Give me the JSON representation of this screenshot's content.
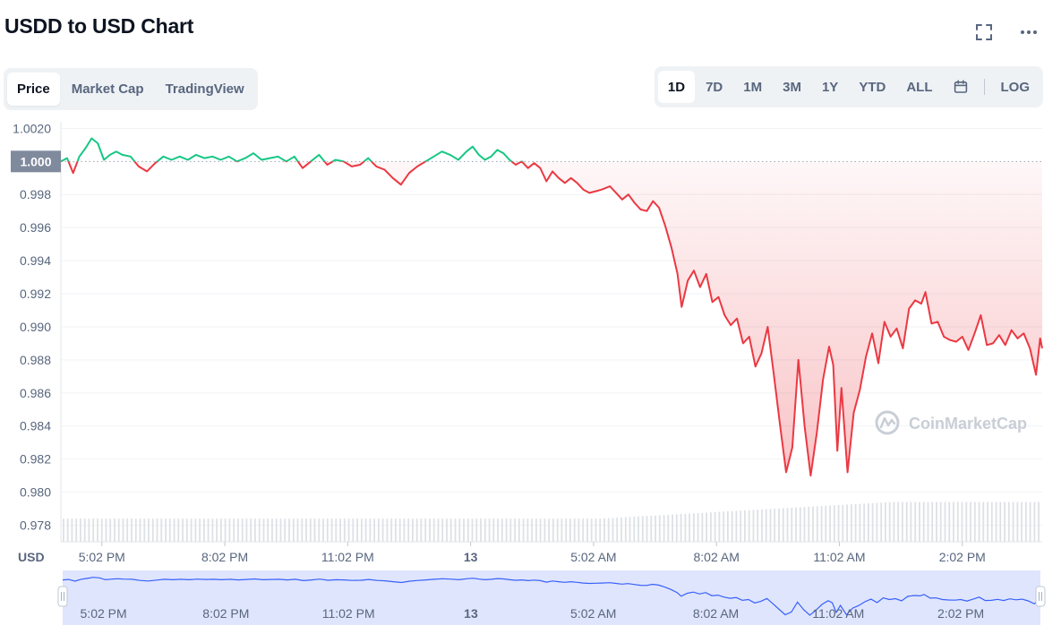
{
  "header": {
    "title": "USDD to USD Chart"
  },
  "tabs": [
    {
      "label": "Price",
      "active": true
    },
    {
      "label": "Market Cap",
      "active": false
    },
    {
      "label": "TradingView",
      "active": false
    }
  ],
  "ranges": [
    {
      "label": "1D",
      "active": true
    },
    {
      "label": "7D",
      "active": false
    },
    {
      "label": "1M",
      "active": false
    },
    {
      "label": "3M",
      "active": false
    },
    {
      "label": "1Y",
      "active": false
    },
    {
      "label": "YTD",
      "active": false
    },
    {
      "label": "ALL",
      "active": false
    }
  ],
  "log_label": "LOG",
  "icons": {
    "expand": "expand-icon",
    "more": "more-icon",
    "calendar": "calendar-icon"
  },
  "watermark": "CoinMarketCap",
  "colors": {
    "up": "#16c784",
    "down": "#ea3943",
    "brush": "#3861fb",
    "current_bg": "#808a9d"
  },
  "chart_data": {
    "type": "line",
    "ylabel": "USD",
    "current_value_label": "1.000",
    "current_value": 1.0,
    "ylim": [
      0.977,
      1.0024
    ],
    "y_ticks": [
      {
        "value": 1.002,
        "label": "1.0020"
      },
      {
        "value": 0.998,
        "label": "0.998"
      },
      {
        "value": 0.996,
        "label": "0.996"
      },
      {
        "value": 0.994,
        "label": "0.994"
      },
      {
        "value": 0.992,
        "label": "0.992"
      },
      {
        "value": 0.99,
        "label": "0.990"
      },
      {
        "value": 0.988,
        "label": "0.988"
      },
      {
        "value": 0.986,
        "label": "0.986"
      },
      {
        "value": 0.984,
        "label": "0.984"
      },
      {
        "value": 0.982,
        "label": "0.982"
      },
      {
        "value": 0.98,
        "label": "0.980"
      },
      {
        "value": 0.978,
        "label": "0.978"
      }
    ],
    "x_ticks": [
      {
        "t": 1.0,
        "label": "5:02 PM",
        "bold": false
      },
      {
        "t": 4.0,
        "label": "8:02 PM",
        "bold": false
      },
      {
        "t": 7.0,
        "label": "11:02 PM",
        "bold": false
      },
      {
        "t": 10.0,
        "label": "13",
        "bold": true
      },
      {
        "t": 13.0,
        "label": "5:02 AM",
        "bold": false
      },
      {
        "t": 16.0,
        "label": "8:02 AM",
        "bold": false
      },
      {
        "t": 19.0,
        "label": "11:02 AM",
        "bold": false
      },
      {
        "t": 22.0,
        "label": "2:02 PM",
        "bold": false
      }
    ],
    "x_range": [
      0.0,
      23.95
    ],
    "series": [
      {
        "points": [
          [
            0.0,
            1.0
          ],
          [
            0.15,
            1.0002
          ],
          [
            0.3,
            0.9993
          ],
          [
            0.45,
            1.0003
          ],
          [
            0.6,
            1.0008
          ],
          [
            0.75,
            1.0014
          ],
          [
            0.9,
            1.0011
          ],
          [
            1.05,
            1.0001
          ],
          [
            1.2,
            1.0004
          ],
          [
            1.35,
            1.0006
          ],
          [
            1.5,
            1.0004
          ],
          [
            1.7,
            1.0003
          ],
          [
            1.9,
            0.9997
          ],
          [
            2.1,
            0.9994
          ],
          [
            2.3,
            0.9999
          ],
          [
            2.5,
            1.0003
          ],
          [
            2.7,
            1.0001
          ],
          [
            2.9,
            1.0003
          ],
          [
            3.1,
            1.0001
          ],
          [
            3.3,
            1.0004
          ],
          [
            3.5,
            1.0002
          ],
          [
            3.7,
            1.0003
          ],
          [
            3.9,
            1.0001
          ],
          [
            4.1,
            1.0003
          ],
          [
            4.3,
            1.0
          ],
          [
            4.5,
            1.0002
          ],
          [
            4.7,
            1.0005
          ],
          [
            4.9,
            1.0001
          ],
          [
            5.1,
            1.0002
          ],
          [
            5.3,
            1.0003
          ],
          [
            5.5,
            1.0
          ],
          [
            5.7,
            1.0003
          ],
          [
            5.9,
            0.9996
          ],
          [
            6.1,
            1.0
          ],
          [
            6.3,
            1.0004
          ],
          [
            6.5,
            0.9998
          ],
          [
            6.7,
            1.0001
          ],
          [
            6.9,
            1.0
          ],
          [
            7.1,
            0.9997
          ],
          [
            7.3,
            0.9998
          ],
          [
            7.5,
            1.0002
          ],
          [
            7.7,
            0.9997
          ],
          [
            7.9,
            0.9995
          ],
          [
            8.1,
            0.999
          ],
          [
            8.3,
            0.9986
          ],
          [
            8.5,
            0.9993
          ],
          [
            8.7,
            0.9997
          ],
          [
            8.9,
            1.0
          ],
          [
            9.1,
            1.0003
          ],
          [
            9.3,
            1.0006
          ],
          [
            9.5,
            1.0004
          ],
          [
            9.7,
            1.0001
          ],
          [
            9.9,
            1.0006
          ],
          [
            10.05,
            1.0009
          ],
          [
            10.2,
            1.0004
          ],
          [
            10.35,
            1.0001
          ],
          [
            10.5,
            1.0003
          ],
          [
            10.65,
            1.0007
          ],
          [
            10.8,
            1.0005
          ],
          [
            10.95,
            1.0001
          ],
          [
            11.1,
            0.9998
          ],
          [
            11.25,
            1.0
          ],
          [
            11.4,
            0.9996
          ],
          [
            11.55,
            0.9999
          ],
          [
            11.7,
            0.9996
          ],
          [
            11.85,
            0.9988
          ],
          [
            12.0,
            0.9994
          ],
          [
            12.15,
            0.999
          ],
          [
            12.3,
            0.9987
          ],
          [
            12.45,
            0.999
          ],
          [
            12.6,
            0.9987
          ],
          [
            12.75,
            0.9983
          ],
          [
            12.9,
            0.9981
          ],
          [
            13.05,
            0.9982
          ],
          [
            13.2,
            0.9983
          ],
          [
            13.4,
            0.9985
          ],
          [
            13.55,
            0.9981
          ],
          [
            13.7,
            0.9977
          ],
          [
            13.85,
            0.998
          ],
          [
            14.0,
            0.9975
          ],
          [
            14.15,
            0.9971
          ],
          [
            14.3,
            0.997
          ],
          [
            14.45,
            0.9976
          ],
          [
            14.6,
            0.9972
          ],
          [
            14.75,
            0.9961
          ],
          [
            14.9,
            0.9948
          ],
          [
            15.05,
            0.9932
          ],
          [
            15.15,
            0.9912
          ],
          [
            15.3,
            0.9928
          ],
          [
            15.45,
            0.9934
          ],
          [
            15.6,
            0.9924
          ],
          [
            15.75,
            0.9932
          ],
          [
            15.9,
            0.9915
          ],
          [
            16.05,
            0.9918
          ],
          [
            16.2,
            0.9907
          ],
          [
            16.35,
            0.9901
          ],
          [
            16.5,
            0.9905
          ],
          [
            16.65,
            0.989
          ],
          [
            16.8,
            0.9894
          ],
          [
            16.95,
            0.9876
          ],
          [
            17.1,
            0.9884
          ],
          [
            17.25,
            0.99
          ],
          [
            17.4,
            0.9871
          ],
          [
            17.55,
            0.9841
          ],
          [
            17.7,
            0.9812
          ],
          [
            17.85,
            0.9827
          ],
          [
            18.0,
            0.988
          ],
          [
            18.15,
            0.984
          ],
          [
            18.3,
            0.981
          ],
          [
            18.45,
            0.9836
          ],
          [
            18.6,
            0.9868
          ],
          [
            18.75,
            0.9888
          ],
          [
            18.85,
            0.9877
          ],
          [
            18.95,
            0.9825
          ],
          [
            19.05,
            0.9863
          ],
          [
            19.2,
            0.9812
          ],
          [
            19.35,
            0.9848
          ],
          [
            19.5,
            0.9862
          ],
          [
            19.65,
            0.9882
          ],
          [
            19.8,
            0.9896
          ],
          [
            19.95,
            0.9878
          ],
          [
            20.1,
            0.9903
          ],
          [
            20.25,
            0.9894
          ],
          [
            20.4,
            0.9899
          ],
          [
            20.55,
            0.9887
          ],
          [
            20.7,
            0.9911
          ],
          [
            20.85,
            0.9916
          ],
          [
            21.0,
            0.9914
          ],
          [
            21.1,
            0.9921
          ],
          [
            21.25,
            0.9902
          ],
          [
            21.4,
            0.9903
          ],
          [
            21.55,
            0.9894
          ],
          [
            21.7,
            0.9892
          ],
          [
            21.85,
            0.9891
          ],
          [
            22.0,
            0.9894
          ],
          [
            22.15,
            0.9886
          ],
          [
            22.3,
            0.9896
          ],
          [
            22.45,
            0.9907
          ],
          [
            22.6,
            0.9889
          ],
          [
            22.75,
            0.989
          ],
          [
            22.9,
            0.9895
          ],
          [
            23.05,
            0.9889
          ],
          [
            23.2,
            0.9898
          ],
          [
            23.35,
            0.9893
          ],
          [
            23.5,
            0.9896
          ],
          [
            23.65,
            0.9887
          ],
          [
            23.8,
            0.9871
          ],
          [
            23.9,
            0.9893
          ],
          [
            23.95,
            0.9887
          ]
        ]
      }
    ],
    "volume": {
      "start": 0.2,
      "end": 0.35
    },
    "grid": true
  }
}
